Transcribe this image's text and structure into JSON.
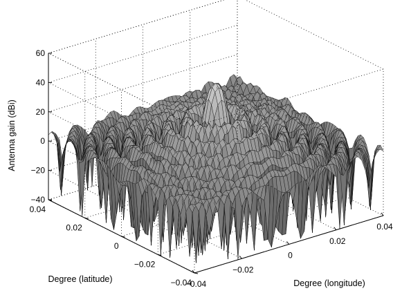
{
  "chart_data": {
    "type": "surface3d",
    "zlabel": "Antenna gain (dBi)",
    "xlabel": "Degree (longitude)",
    "ylabel": "Degree (latitude)",
    "xlim": [
      -0.04,
      0.04
    ],
    "ylim": [
      -0.04,
      0.04
    ],
    "zlim": [
      -40,
      60
    ],
    "x_ticks": [
      "−0.04",
      "−0.02",
      "0",
      "0.02",
      "0.04"
    ],
    "y_ticks": [
      "−0.04",
      "−0.02",
      "0",
      "0.02",
      "0.04"
    ],
    "z_ticks": [
      "−40",
      "−20",
      "0",
      "20",
      "40",
      "60"
    ],
    "grid": true,
    "colormap": "gray",
    "surface": {
      "description_of_shape": "radially symmetric Bessel-like antenna pattern",
      "peak_gain_dbi": 45,
      "floor_gain_dbi": -40,
      "first_null_radius_deg": 0.0065,
      "ring_spacing_deg": 0.0065,
      "sidelobe_peaks_dbi": [
        24,
        18,
        14,
        11,
        8,
        6
      ]
    }
  }
}
